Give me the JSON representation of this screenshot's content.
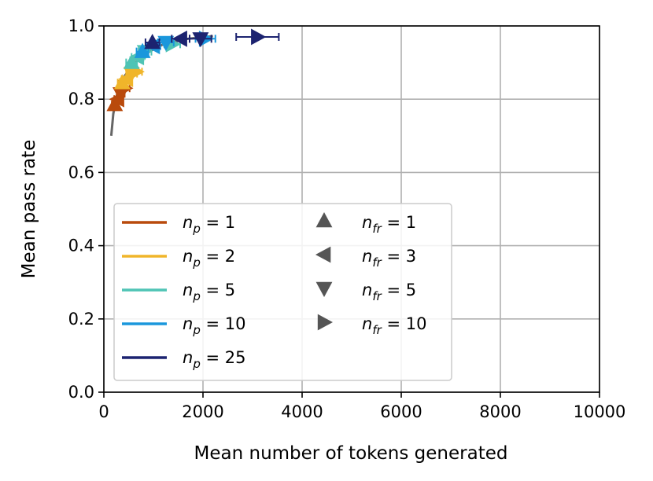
{
  "chart_data": {
    "type": "scatter",
    "title": "",
    "xlabel": "Mean number of tokens generated",
    "ylabel": "Mean pass rate",
    "xlim": [
      0,
      10000
    ],
    "ylim": [
      0.0,
      1.0
    ],
    "x_ticks": [
      "0",
      "2000",
      "4000",
      "6000",
      "8000",
      "10000"
    ],
    "y_ticks": [
      "0.0",
      "0.2",
      "0.4",
      "0.6",
      "0.8",
      "1.0"
    ],
    "grid": true,
    "legend_position": "lower-left",
    "marker_color": "#555555",
    "colors": {
      "np1": "#b94a0c",
      "np2": "#f0b52a",
      "np5": "#4fc4b5",
      "np10": "#1a97dc",
      "np25": "#1c2370",
      "trend": "#666666",
      "grid": "#b0b0b0"
    },
    "legend_np": [
      {
        "key": "np1",
        "label": "n_p = 1"
      },
      {
        "key": "np2",
        "label": "n_p = 2"
      },
      {
        "key": "np5",
        "label": "n_p = 5"
      },
      {
        "key": "np10",
        "label": "n_p = 10"
      },
      {
        "key": "np25",
        "label": "n_p = 25"
      }
    ],
    "legend_nfr": [
      {
        "marker": "up",
        "label": "n_fr = 1"
      },
      {
        "marker": "left",
        "label": "n_fr = 3"
      },
      {
        "marker": "down",
        "label": "n_fr = 5"
      },
      {
        "marker": "right",
        "label": "n_fr = 10"
      }
    ],
    "trend": [
      [
        150,
        0.7
      ],
      [
        190,
        0.76
      ],
      [
        260,
        0.81
      ],
      [
        400,
        0.86
      ],
      [
        600,
        0.895
      ],
      [
        850,
        0.925
      ],
      [
        1200,
        0.95
      ],
      [
        1700,
        0.965
      ],
      [
        2200,
        0.972
      ]
    ],
    "points": [
      {
        "np": "np1",
        "m": "up",
        "x": 220,
        "y": 0.785,
        "xerr": 60
      },
      {
        "np": "np1",
        "m": "left",
        "x": 280,
        "y": 0.8,
        "xerr": 70
      },
      {
        "np": "np1",
        "m": "down",
        "x": 340,
        "y": 0.815,
        "xerr": 80
      },
      {
        "np": "np1",
        "m": "right",
        "x": 420,
        "y": 0.83,
        "xerr": 100
      },
      {
        "np": "np2",
        "m": "up",
        "x": 370,
        "y": 0.845,
        "xerr": 90
      },
      {
        "np": "np2",
        "m": "left",
        "x": 460,
        "y": 0.855,
        "xerr": 100
      },
      {
        "np": "np2",
        "m": "down",
        "x": 560,
        "y": 0.87,
        "xerr": 110
      },
      {
        "np": "np2",
        "m": "right",
        "x": 650,
        "y": 0.875,
        "xerr": 120
      },
      {
        "np": "np5",
        "m": "up",
        "x": 560,
        "y": 0.9,
        "xerr": 110
      },
      {
        "np": "np5",
        "m": "left",
        "x": 680,
        "y": 0.915,
        "xerr": 120
      },
      {
        "np": "np5",
        "m": "down",
        "x": 830,
        "y": 0.93,
        "xerr": 130
      },
      {
        "np": "np5",
        "m": "right",
        "x": 1380,
        "y": 0.95,
        "xerr": 160
      },
      {
        "np": "np10",
        "m": "up",
        "x": 780,
        "y": 0.93,
        "xerr": 120
      },
      {
        "np": "np10",
        "m": "left",
        "x": 1000,
        "y": 0.945,
        "xerr": 140
      },
      {
        "np": "np10",
        "m": "down",
        "x": 1250,
        "y": 0.955,
        "xerr": 160
      },
      {
        "np": "np10",
        "m": "right",
        "x": 2050,
        "y": 0.965,
        "xerr": 200
      },
      {
        "np": "np25",
        "m": "up",
        "x": 980,
        "y": 0.955,
        "xerr": 140
      },
      {
        "np": "np25",
        "m": "left",
        "x": 1550,
        "y": 0.965,
        "xerr": 180
      },
      {
        "np": "np25",
        "m": "down",
        "x": 1950,
        "y": 0.965,
        "xerr": 220
      },
      {
        "np": "np25",
        "m": "right",
        "x": 3100,
        "y": 0.97,
        "xerr": 430
      }
    ]
  }
}
